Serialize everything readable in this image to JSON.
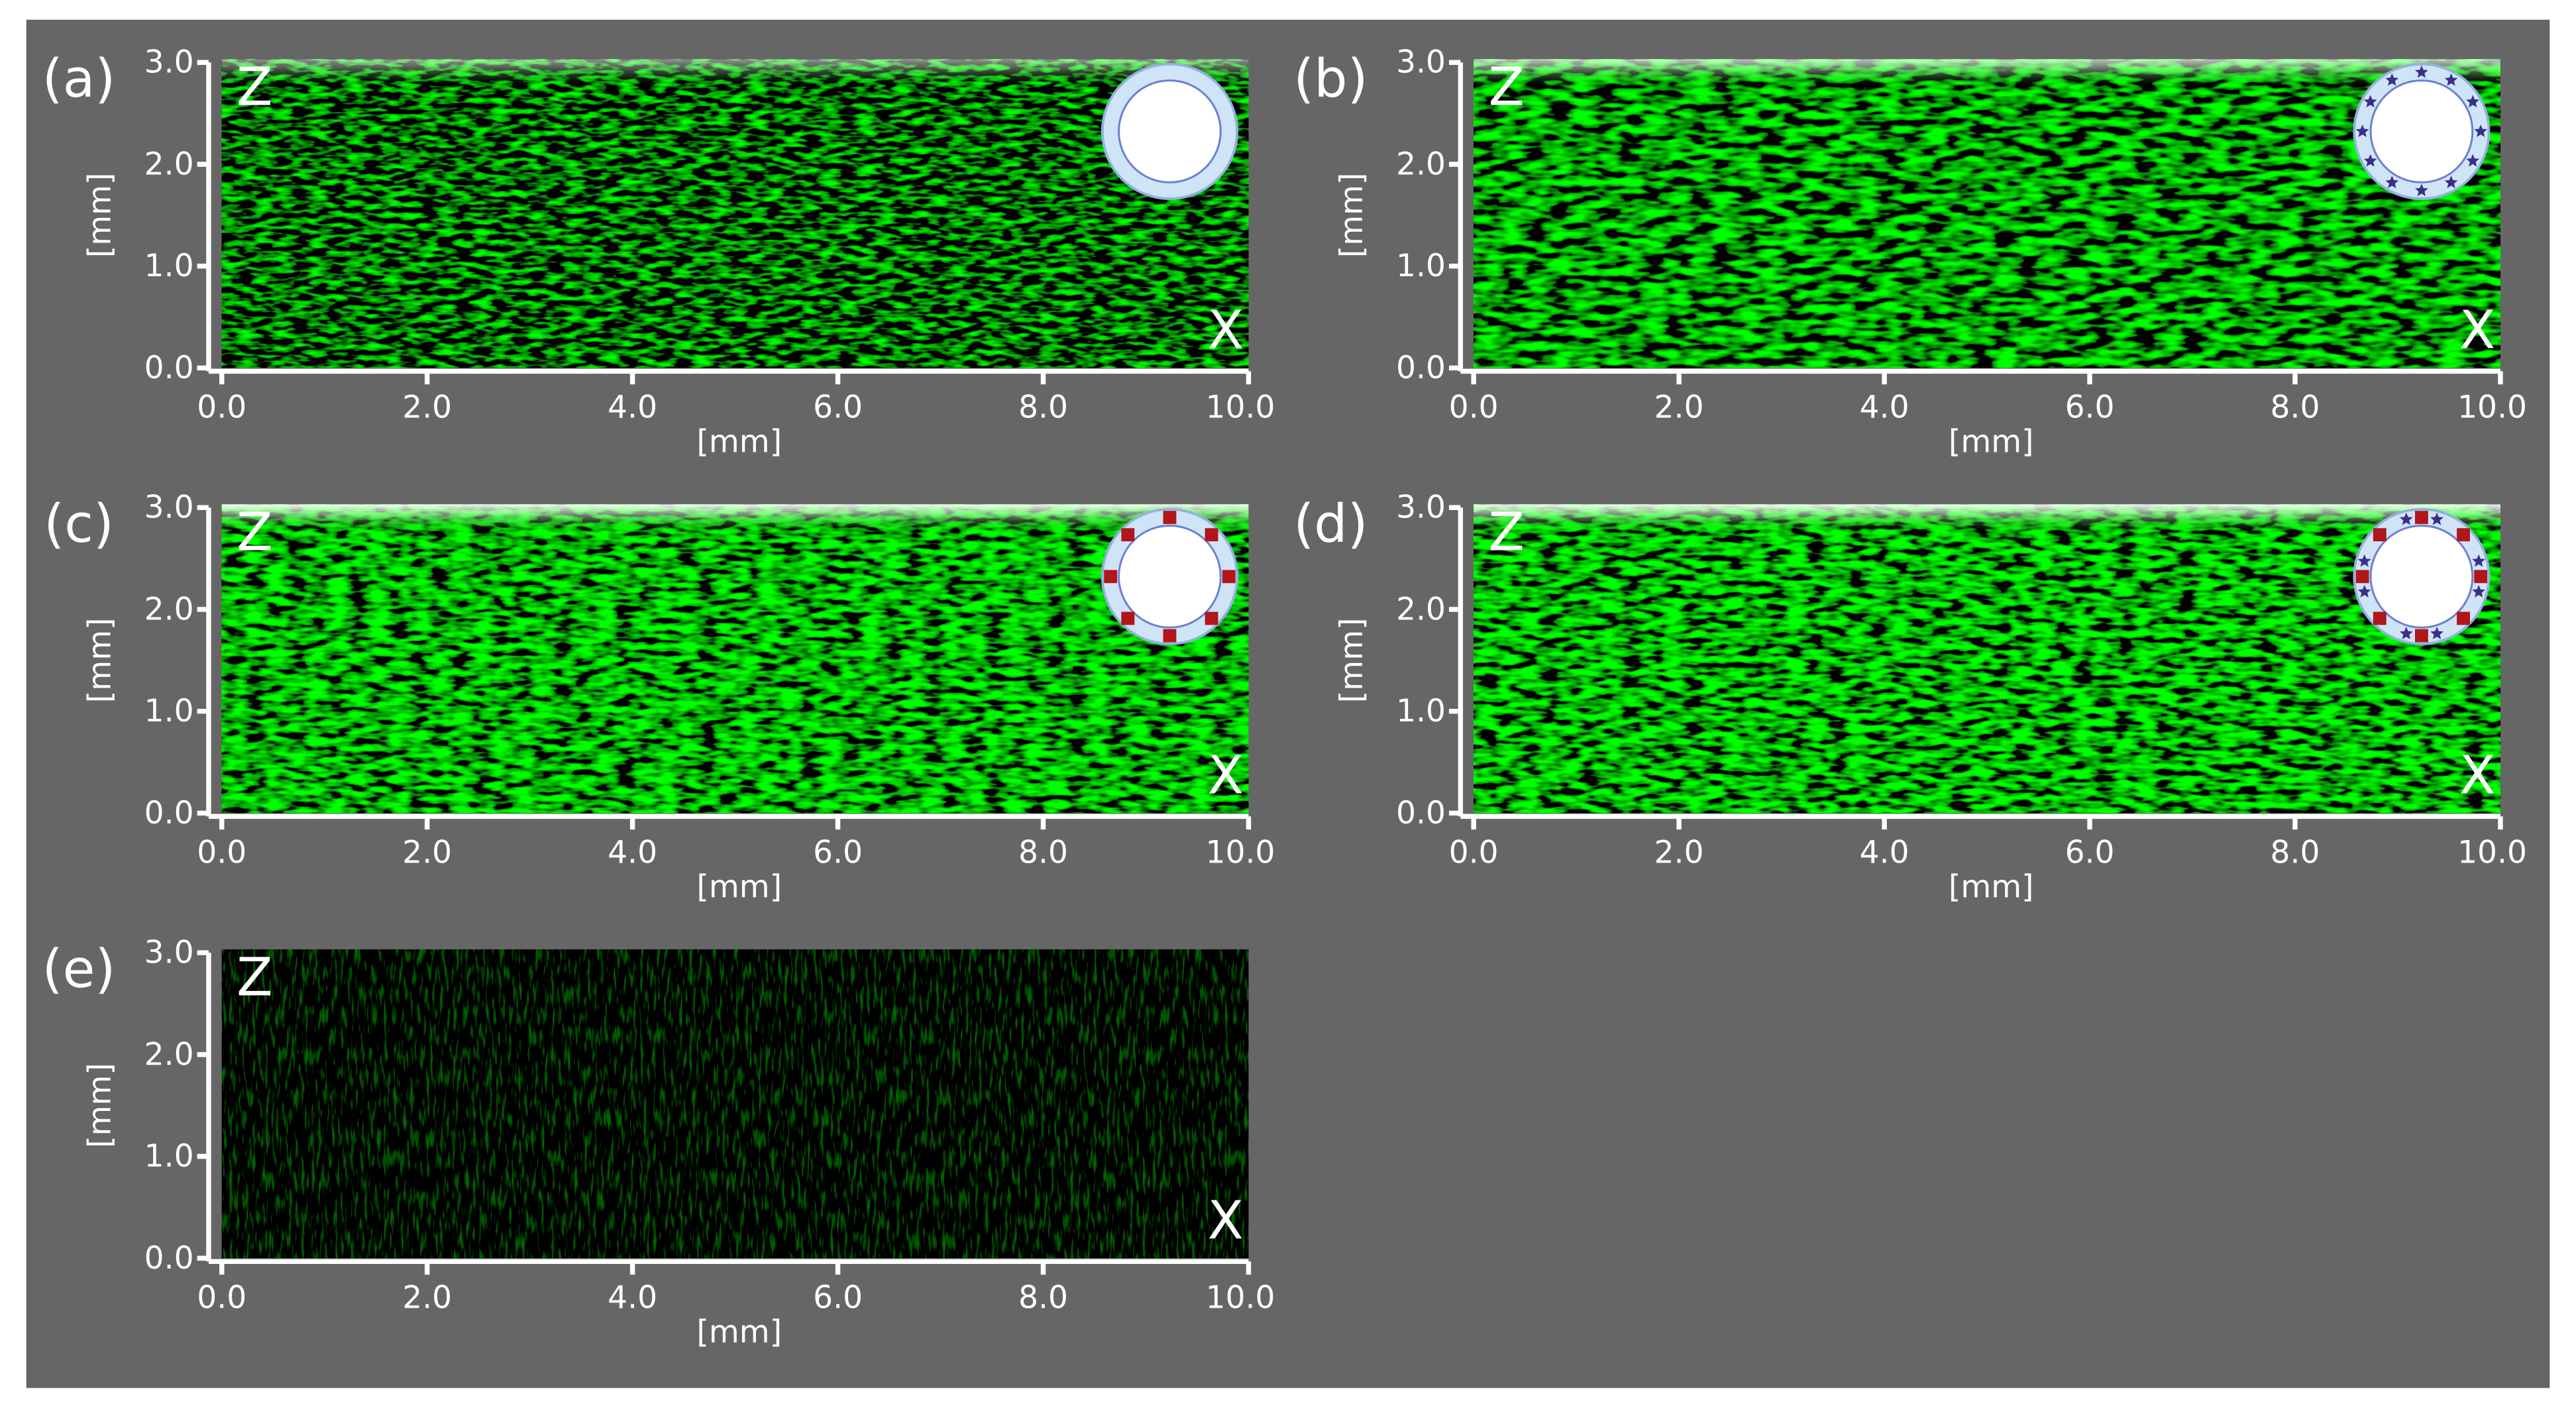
{
  "chart_data": [
    {
      "type": "image",
      "panel_label": "(a)",
      "annotations": [
        "Z",
        "X"
      ],
      "xlabel": "[mm]",
      "ylabel": "[mm]",
      "xlim": [
        0,
        10
      ],
      "ylim": [
        0,
        3
      ],
      "xticks": [
        {
          "value": 0,
          "label": "0.0"
        },
        {
          "value": 2,
          "label": "2.0"
        },
        {
          "value": 4,
          "label": "4.0"
        },
        {
          "value": 6,
          "label": "6.0"
        },
        {
          "value": 8,
          "label": "8.0"
        },
        {
          "value": 10,
          "label": "10.0"
        }
      ],
      "yticks": [
        {
          "value": 0,
          "label": "0.0"
        },
        {
          "value": 1,
          "label": "1.0"
        },
        {
          "value": 2,
          "label": "2.0"
        },
        {
          "value": 3,
          "label": "3.0"
        }
      ]
    },
    {
      "type": "image",
      "panel_label": "(b)",
      "annotations": [
        "Z",
        "X"
      ],
      "xlabel": "[mm]",
      "ylabel": "[mm]",
      "xlim": [
        0,
        10
      ],
      "ylim": [
        0,
        3
      ],
      "xticks": [
        {
          "value": 0,
          "label": "0.0"
        },
        {
          "value": 2,
          "label": "2.0"
        },
        {
          "value": 4,
          "label": "4.0"
        },
        {
          "value": 6,
          "label": "6.0"
        },
        {
          "value": 8,
          "label": "8.0"
        },
        {
          "value": 10,
          "label": "10.0"
        }
      ],
      "yticks": [
        {
          "value": 0,
          "label": "0.0"
        },
        {
          "value": 1,
          "label": "1.0"
        },
        {
          "value": 2,
          "label": "2.0"
        },
        {
          "value": 3,
          "label": "3.0"
        }
      ]
    },
    {
      "type": "image",
      "panel_label": "(c)",
      "annotations": [
        "Z",
        "X"
      ],
      "xlabel": "[mm]",
      "ylabel": "[mm]",
      "xlim": [
        0,
        10
      ],
      "ylim": [
        0,
        3
      ],
      "xticks": [
        {
          "value": 0,
          "label": "0.0"
        },
        {
          "value": 2,
          "label": "2.0"
        },
        {
          "value": 4,
          "label": "4.0"
        },
        {
          "value": 6,
          "label": "6.0"
        },
        {
          "value": 8,
          "label": "8.0"
        },
        {
          "value": 10,
          "label": "10.0"
        }
      ],
      "yticks": [
        {
          "value": 0,
          "label": "0.0"
        },
        {
          "value": 1,
          "label": "1.0"
        },
        {
          "value": 2,
          "label": "2.0"
        },
        {
          "value": 3,
          "label": "3.0"
        }
      ]
    },
    {
      "type": "image",
      "panel_label": "(d)",
      "annotations": [
        "Z",
        "X"
      ],
      "xlabel": "[mm]",
      "ylabel": "[mm]",
      "xlim": [
        0,
        10
      ],
      "ylim": [
        0,
        3
      ],
      "xticks": [
        {
          "value": 0,
          "label": "0.0"
        },
        {
          "value": 2,
          "label": "2.0"
        },
        {
          "value": 4,
          "label": "4.0"
        },
        {
          "value": 6,
          "label": "6.0"
        },
        {
          "value": 8,
          "label": "8.0"
        },
        {
          "value": 10,
          "label": "10.0"
        }
      ],
      "yticks": [
        {
          "value": 0,
          "label": "0.0"
        },
        {
          "value": 1,
          "label": "1.0"
        },
        {
          "value": 2,
          "label": "2.0"
        },
        {
          "value": 3,
          "label": "3.0"
        }
      ]
    },
    {
      "type": "image",
      "panel_label": "(e)",
      "annotations": [
        "Z",
        "X"
      ],
      "xlabel": "[mm]",
      "ylabel": "[mm]",
      "xlim": [
        0,
        10
      ],
      "ylim": [
        0,
        3
      ],
      "xticks": [
        {
          "value": 0,
          "label": "0.0"
        },
        {
          "value": 2,
          "label": "2.0"
        },
        {
          "value": 4,
          "label": "4.0"
        },
        {
          "value": 6,
          "label": "6.0"
        },
        {
          "value": 8,
          "label": "8.0"
        },
        {
          "value": 10,
          "label": "10.0"
        }
      ],
      "yticks": [
        {
          "value": 0,
          "label": "0.0"
        },
        {
          "value": 1,
          "label": "1.0"
        },
        {
          "value": 2,
          "label": "2.0"
        },
        {
          "value": 3,
          "label": "3.0"
        }
      ]
    }
  ]
}
